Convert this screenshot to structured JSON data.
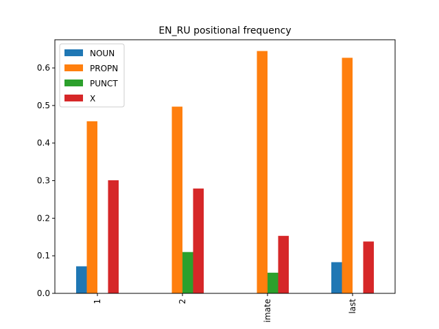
{
  "chart_data": {
    "type": "bar",
    "title": "EN_RU positional frequency",
    "xlabel": "",
    "ylabel": "",
    "categories": [
      "1",
      "2",
      "imate",
      "last"
    ],
    "ylim": [
      0,
      0.675
    ],
    "yticks": [
      0.0,
      0.1,
      0.2,
      0.3,
      0.4,
      0.5,
      0.6
    ],
    "ytick_labels": [
      "0.0",
      "0.1",
      "0.2",
      "0.3",
      "0.4",
      "0.5",
      "0.6"
    ],
    "grid": false,
    "legend_position": "top-left",
    "series": [
      {
        "name": "NOUN",
        "color": "#1f77b4",
        "values": [
          0.072,
          0.0,
          0.0,
          0.083
        ]
      },
      {
        "name": "PROPN",
        "color": "#ff7f0e",
        "values": [
          0.458,
          0.497,
          0.645,
          0.627
        ]
      },
      {
        "name": "PUNCT",
        "color": "#2ca02c",
        "values": [
          0.0,
          0.11,
          0.055,
          0.0
        ]
      },
      {
        "name": "X",
        "color": "#d62728",
        "values": [
          0.301,
          0.279,
          0.153,
          0.138
        ]
      }
    ]
  }
}
